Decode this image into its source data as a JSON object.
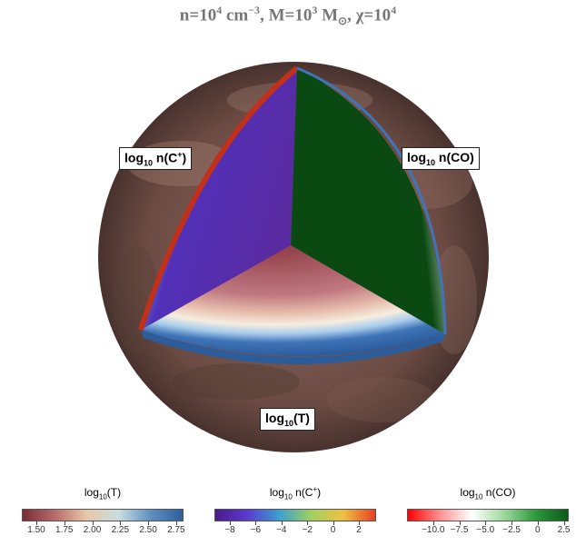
{
  "title": {
    "n_prefix": "n=10",
    "n_exp": "4",
    "n_unit": " cm",
    "n_unit_exp": "−3",
    "m_prefix": ", M=10",
    "m_exp": "3",
    "m_unit": " M",
    "m_sub": "⊙",
    "chi_prefix": ", χ=10",
    "chi_exp": "4"
  },
  "labels": {
    "cplus": {
      "log": "log",
      "base": "10",
      "rest": " n(C",
      "sup": "+",
      "close": ")"
    },
    "co": {
      "log": "log",
      "base": "10",
      "rest": " n(CO)"
    },
    "temp": {
      "log": "log",
      "base": "10",
      "rest": "(T)"
    }
  },
  "colorbars": [
    {
      "name": "temperature",
      "title_log": "log",
      "title_base": "10",
      "title_rest": "(T)",
      "title_sup": "",
      "title_close": "",
      "ticks": [
        "1.50",
        "1.75",
        "2.00",
        "2.25",
        "2.50",
        "2.75"
      ],
      "tick_values": [
        1.5,
        1.75,
        2.0,
        2.25,
        2.5,
        2.75
      ],
      "range": [
        1.37,
        2.8
      ],
      "colors": [
        "#7a2e35",
        "#b86a6a",
        "#e8c7a8",
        "#c8dde0",
        "#5f8fc0",
        "#2f5f9e"
      ]
    },
    {
      "name": "cplus",
      "title_log": "log",
      "title_base": "10",
      "title_rest": " n(C",
      "title_sup": "+",
      "title_close": ")",
      "ticks": [
        "−8",
        "−6",
        "−4",
        "−2",
        "0",
        "2"
      ],
      "tick_values": [
        -8,
        -6,
        -4,
        -2,
        0,
        2
      ],
      "range": [
        -9.2,
        3.2
      ],
      "colors": [
        "#4a1a8a",
        "#5a3ad0",
        "#3aa0d0",
        "#a0d060",
        "#f0c040",
        "#e84020"
      ]
    },
    {
      "name": "co",
      "title_log": "log",
      "title_base": "10",
      "title_rest": " n(CO)",
      "title_sup": "",
      "title_close": "",
      "ticks": [
        "−10.0",
        "−7.5",
        "−5.0",
        "−2.5",
        "0",
        "2.5"
      ],
      "tick_values": [
        -10,
        -7.5,
        -5,
        -2.5,
        0,
        2.5
      ],
      "range": [
        -12.5,
        2.8
      ],
      "colors": [
        "#ff0000",
        "#ff9090",
        "#ffffff",
        "#9fd89f",
        "#2a9a3a",
        "#0a5a1a"
      ]
    }
  ]
}
